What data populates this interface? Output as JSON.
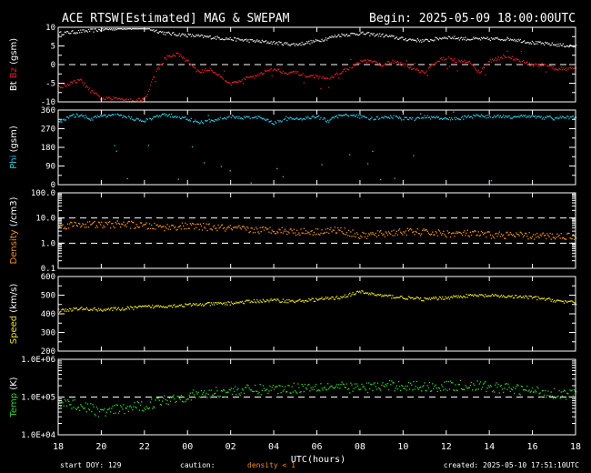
{
  "header": {
    "title": "ACE RTSW[Estimated] MAG & SWEPAM",
    "begin": "Begin: 2025-05-09 18:00:00UTC"
  },
  "footer": {
    "start_doy": "start DOY: 129",
    "caution": "caution:",
    "density_caution": "density < 1",
    "created": "created: 2025-05-10 17:51:10UTC"
  },
  "colors": {
    "bt": "#e0e0e0",
    "bz": "#e02020",
    "phi": "#30c8e8",
    "density": "#f09020",
    "speed": "#e8e020",
    "temp": "#30d030",
    "caution": "#f09020"
  },
  "chart_data": {
    "type": "scatter",
    "xlabel": "UTC(hours)",
    "x_ticks": [
      "18",
      "20",
      "22",
      "00",
      "02",
      "04",
      "06",
      "08",
      "10",
      "12",
      "14",
      "16",
      "18"
    ],
    "x_range_hours": [
      0,
      24
    ],
    "panels": [
      {
        "id": "mag",
        "ylabel_parts": [
          "Bt",
          "Bz",
          "(gsm)"
        ],
        "ylim": [
          -10,
          10
        ],
        "y_ticks": [
          {
            "v": 10,
            "label": "10"
          },
          {
            "v": 5,
            "label": "5"
          },
          {
            "v": 0,
            "label": "0"
          },
          {
            "v": -5,
            "label": "-5"
          },
          {
            "v": -10,
            "label": "-10"
          }
        ],
        "ref_lines": [
          0
        ],
        "series": [
          {
            "name": "Bt",
            "x": [
              0,
              1,
              2,
              3,
              4,
              5,
              6,
              7,
              8,
              9,
              10,
              11,
              12,
              13,
              14,
              15,
              16,
              17,
              18,
              19,
              20,
              21,
              22,
              23,
              24
            ],
            "y": [
              8.5,
              9,
              9.5,
              10,
              10,
              8.5,
              8,
              7.5,
              7,
              6.5,
              6,
              5.5,
              6.5,
              8,
              8.5,
              8,
              7,
              6.5,
              7.5,
              7,
              7,
              7,
              6,
              5.5,
              5
            ]
          },
          {
            "name": "Bz",
            "x": [
              0,
              0.5,
              1,
              1.5,
              2,
              2.5,
              3,
              3.5,
              4,
              4.5,
              5,
              5.5,
              6,
              6.5,
              7,
              7.5,
              8,
              8.5,
              9,
              9.5,
              10,
              10.5,
              11,
              11.5,
              12,
              12.5,
              13,
              13.5,
              14,
              14.5,
              15,
              15.5,
              16,
              16.5,
              17,
              17.5,
              18,
              18.5,
              19,
              19.5,
              20,
              20.5,
              21,
              21.5,
              22,
              22.5,
              23,
              23.5,
              24
            ],
            "y": [
              -6,
              -5,
              -4,
              -7,
              -9,
              -9,
              -9,
              -9.5,
              -9,
              -2,
              2,
              3,
              1,
              -2,
              -1,
              -3,
              -5,
              -4,
              -3,
              -2,
              -1,
              -2,
              -2,
              -3,
              -3,
              -4,
              -2,
              -1,
              1,
              1,
              0,
              1,
              0,
              -1,
              -2,
              1,
              2,
              1,
              1,
              -2,
              1,
              2,
              2,
              1,
              0,
              0,
              -1,
              -1,
              -0.5
            ]
          }
        ]
      },
      {
        "id": "phi",
        "ylabel_parts": [
          "Phi",
          "(gsm)"
        ],
        "ylim": [
          0,
          360
        ],
        "y_ticks": [
          {
            "v": 360,
            "label": "360"
          },
          {
            "v": 270,
            "label": "270"
          },
          {
            "v": 180,
            "label": "180"
          },
          {
            "v": 90,
            "label": "90"
          },
          {
            "v": 0,
            "label": "0"
          }
        ],
        "ref_lines": [],
        "series": [
          {
            "name": "Phi",
            "x": [
              0,
              0.5,
              1,
              1.5,
              2,
              2.5,
              3,
              3.5,
              4,
              4.5,
              5,
              5.5,
              6,
              6.5,
              7,
              7.5,
              8,
              8.5,
              9,
              9.5,
              10,
              10.5,
              11,
              11.5,
              12,
              12.5,
              13,
              13.5,
              14,
              14.5,
              15,
              15.5,
              16,
              16.5,
              17,
              17.5,
              18,
              18.5,
              19,
              19.5,
              20,
              20.5,
              21,
              21.5,
              22,
              22.5,
              23,
              23.5,
              24
            ],
            "y": [
              300,
              330,
              340,
              320,
              335,
              340,
              330,
              320,
              310,
              330,
              340,
              330,
              320,
              300,
              310,
              320,
              330,
              325,
              330,
              320,
              300,
              320,
              320,
              325,
              330,
              310,
              335,
              340,
              330,
              320,
              325,
              330,
              320,
              320,
              330,
              325,
              320,
              320,
              330,
              335,
              330,
              330,
              330,
              335,
              330,
              325,
              330,
              325,
              330
            ]
          }
        ]
      },
      {
        "id": "density",
        "ylabel_parts": [
          "Density",
          "(/cm3)"
        ],
        "log": true,
        "ylim": [
          0.1,
          100
        ],
        "y_ticks": [
          {
            "v": 100,
            "label": "100.0"
          },
          {
            "v": 10,
            "label": "10.0"
          },
          {
            "v": 1,
            "label": "1.0"
          },
          {
            "v": 0.1,
            "label": "0.1"
          }
        ],
        "ref_lines": [
          10,
          1
        ],
        "series": [
          {
            "name": "Density",
            "x": [
              0,
              1,
              2,
              3,
              4,
              5,
              6,
              7,
              8,
              9,
              10,
              11,
              12,
              13,
              14,
              15,
              16,
              17,
              18,
              19,
              20,
              21,
              22,
              23,
              24
            ],
            "y": [
              5,
              6,
              5.5,
              6,
              5,
              4.5,
              5,
              4.5,
              4,
              3.5,
              3.5,
              3,
              3,
              3.5,
              2,
              2.5,
              3,
              2.8,
              2.5,
              2.5,
              2.2,
              2.2,
              2,
              2,
              2
            ]
          }
        ]
      },
      {
        "id": "speed",
        "ylabel_parts": [
          "Speed",
          "(km/s)"
        ],
        "ylim": [
          200,
          600
        ],
        "y_ticks": [
          {
            "v": 600,
            "label": "600"
          },
          {
            "v": 500,
            "label": "500"
          },
          {
            "v": 400,
            "label": "400"
          },
          {
            "v": 300,
            "label": "300"
          },
          {
            "v": 200,
            "label": "200"
          }
        ],
        "ref_lines": [],
        "series": [
          {
            "name": "Speed",
            "x": [
              0,
              1,
              2,
              3,
              4,
              5,
              6,
              7,
              8,
              9,
              10,
              11,
              12,
              13,
              14,
              15,
              16,
              17,
              18,
              19,
              20,
              21,
              22,
              23,
              24
            ],
            "y": [
              420,
              430,
              425,
              430,
              440,
              445,
              450,
              455,
              460,
              470,
              475,
              470,
              480,
              490,
              520,
              500,
              490,
              480,
              490,
              500,
              500,
              495,
              490,
              475,
              460
            ]
          }
        ]
      },
      {
        "id": "temp",
        "ylabel_parts": [
          "Temp",
          "(K)"
        ],
        "log": true,
        "ylim": [
          10000,
          1000000
        ],
        "y_ticks": [
          {
            "v": 1000000,
            "label": "1.0E+06"
          },
          {
            "v": 100000,
            "label": "1.0E+05"
          },
          {
            "v": 10000,
            "label": "1.0E+04"
          }
        ],
        "ref_lines": [
          100000
        ],
        "series": [
          {
            "name": "Temp",
            "x": [
              0,
              1,
              2,
              3,
              4,
              5,
              6,
              7,
              8,
              9,
              10,
              11,
              12,
              13,
              14,
              15,
              16,
              17,
              18,
              19,
              20,
              21,
              22,
              23,
              24
            ],
            "y": [
              80000,
              60000,
              40000,
              50000,
              60000,
              90000,
              110000,
              130000,
              150000,
              160000,
              170000,
              180000,
              200000,
              190000,
              180000,
              200000,
              210000,
              190000,
              200000,
              210000,
              190000,
              170000,
              150000,
              130000,
              120000
            ]
          }
        ]
      }
    ]
  }
}
